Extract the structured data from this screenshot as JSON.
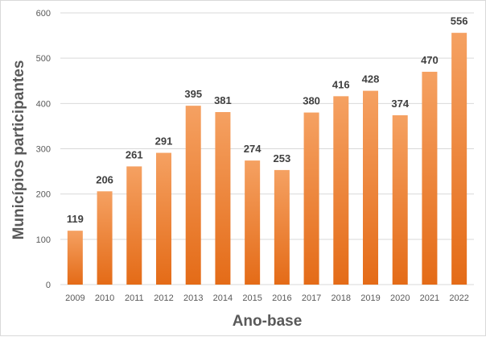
{
  "chart_data": {
    "type": "bar",
    "title": "",
    "xlabel": "Ano-base",
    "ylabel": "Municípios participantes",
    "categories": [
      "2009",
      "2010",
      "2011",
      "2012",
      "2013",
      "2014",
      "2015",
      "2016",
      "2017",
      "2018",
      "2019",
      "2020",
      "2021",
      "2022"
    ],
    "values": [
      119,
      206,
      261,
      291,
      395,
      381,
      274,
      253,
      380,
      416,
      428,
      374,
      470,
      556
    ],
    "ylim": [
      0,
      600
    ],
    "yticks": [
      "0",
      "100",
      "200",
      "300",
      "400",
      "500",
      "600"
    ],
    "grid": true,
    "legend": "none",
    "colors": {
      "bar_light": "#f5a162",
      "bar_dark": "#e46b17",
      "grid": "#d9d9d9"
    }
  }
}
